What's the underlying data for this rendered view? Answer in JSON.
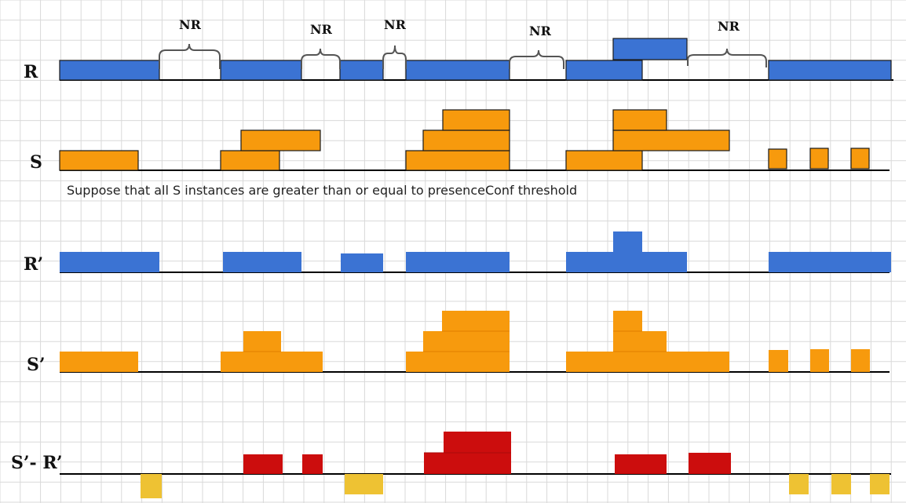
{
  "labels": {
    "R": "R",
    "S": "S",
    "R_prime": "R’",
    "S_prime": "S’",
    "diff": "S’- R’"
  },
  "nr_label": "NR",
  "note": "Suppose that all S instances are greater than or equal to presenceConf threshold",
  "colors": {
    "blue": "#3b73d3",
    "orange": "#f79a0d",
    "red": "#cc0d0d",
    "yellow": "#eec233",
    "grid": "#d9d9d9",
    "axis": "#000000"
  }
}
